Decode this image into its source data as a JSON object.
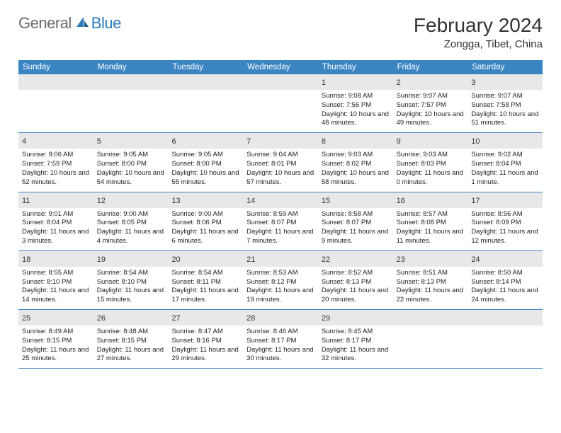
{
  "logo": {
    "part1": "General",
    "part2": "Blue"
  },
  "title": "February 2024",
  "location": "Zongga, Tibet, China",
  "colors": {
    "header_bg": "#3b85c3",
    "header_text": "#ffffff",
    "daynum_bg": "#e8e8e8",
    "border": "#3b85c3",
    "logo_gray": "#6b6b6b",
    "logo_blue": "#2b7bbd"
  },
  "day_names": [
    "Sunday",
    "Monday",
    "Tuesday",
    "Wednesday",
    "Thursday",
    "Friday",
    "Saturday"
  ],
  "weeks": [
    [
      {
        "n": "",
        "empty": true
      },
      {
        "n": "",
        "empty": true
      },
      {
        "n": "",
        "empty": true
      },
      {
        "n": "",
        "empty": true
      },
      {
        "n": "1",
        "sunrise": "Sunrise: 9:08 AM",
        "sunset": "Sunset: 7:56 PM",
        "daylight": "Daylight: 10 hours and 48 minutes."
      },
      {
        "n": "2",
        "sunrise": "Sunrise: 9:07 AM",
        "sunset": "Sunset: 7:57 PM",
        "daylight": "Daylight: 10 hours and 49 minutes."
      },
      {
        "n": "3",
        "sunrise": "Sunrise: 9:07 AM",
        "sunset": "Sunset: 7:58 PM",
        "daylight": "Daylight: 10 hours and 51 minutes."
      }
    ],
    [
      {
        "n": "4",
        "sunrise": "Sunrise: 9:06 AM",
        "sunset": "Sunset: 7:59 PM",
        "daylight": "Daylight: 10 hours and 52 minutes."
      },
      {
        "n": "5",
        "sunrise": "Sunrise: 9:05 AM",
        "sunset": "Sunset: 8:00 PM",
        "daylight": "Daylight: 10 hours and 54 minutes."
      },
      {
        "n": "6",
        "sunrise": "Sunrise: 9:05 AM",
        "sunset": "Sunset: 8:00 PM",
        "daylight": "Daylight: 10 hours and 55 minutes."
      },
      {
        "n": "7",
        "sunrise": "Sunrise: 9:04 AM",
        "sunset": "Sunset: 8:01 PM",
        "daylight": "Daylight: 10 hours and 57 minutes."
      },
      {
        "n": "8",
        "sunrise": "Sunrise: 9:03 AM",
        "sunset": "Sunset: 8:02 PM",
        "daylight": "Daylight: 10 hours and 58 minutes."
      },
      {
        "n": "9",
        "sunrise": "Sunrise: 9:03 AM",
        "sunset": "Sunset: 8:03 PM",
        "daylight": "Daylight: 11 hours and 0 minutes."
      },
      {
        "n": "10",
        "sunrise": "Sunrise: 9:02 AM",
        "sunset": "Sunset: 8:04 PM",
        "daylight": "Daylight: 11 hours and 1 minute."
      }
    ],
    [
      {
        "n": "11",
        "sunrise": "Sunrise: 9:01 AM",
        "sunset": "Sunset: 8:04 PM",
        "daylight": "Daylight: 11 hours and 3 minutes."
      },
      {
        "n": "12",
        "sunrise": "Sunrise: 9:00 AM",
        "sunset": "Sunset: 8:05 PM",
        "daylight": "Daylight: 11 hours and 4 minutes."
      },
      {
        "n": "13",
        "sunrise": "Sunrise: 9:00 AM",
        "sunset": "Sunset: 8:06 PM",
        "daylight": "Daylight: 11 hours and 6 minutes."
      },
      {
        "n": "14",
        "sunrise": "Sunrise: 8:59 AM",
        "sunset": "Sunset: 8:07 PM",
        "daylight": "Daylight: 11 hours and 7 minutes."
      },
      {
        "n": "15",
        "sunrise": "Sunrise: 8:58 AM",
        "sunset": "Sunset: 8:07 PM",
        "daylight": "Daylight: 11 hours and 9 minutes."
      },
      {
        "n": "16",
        "sunrise": "Sunrise: 8:57 AM",
        "sunset": "Sunset: 8:08 PM",
        "daylight": "Daylight: 11 hours and 11 minutes."
      },
      {
        "n": "17",
        "sunrise": "Sunrise: 8:56 AM",
        "sunset": "Sunset: 8:09 PM",
        "daylight": "Daylight: 11 hours and 12 minutes."
      }
    ],
    [
      {
        "n": "18",
        "sunrise": "Sunrise: 8:55 AM",
        "sunset": "Sunset: 8:10 PM",
        "daylight": "Daylight: 11 hours and 14 minutes."
      },
      {
        "n": "19",
        "sunrise": "Sunrise: 8:54 AM",
        "sunset": "Sunset: 8:10 PM",
        "daylight": "Daylight: 11 hours and 15 minutes."
      },
      {
        "n": "20",
        "sunrise": "Sunrise: 8:54 AM",
        "sunset": "Sunset: 8:11 PM",
        "daylight": "Daylight: 11 hours and 17 minutes."
      },
      {
        "n": "21",
        "sunrise": "Sunrise: 8:53 AM",
        "sunset": "Sunset: 8:12 PM",
        "daylight": "Daylight: 11 hours and 19 minutes."
      },
      {
        "n": "22",
        "sunrise": "Sunrise: 8:52 AM",
        "sunset": "Sunset: 8:13 PM",
        "daylight": "Daylight: 11 hours and 20 minutes."
      },
      {
        "n": "23",
        "sunrise": "Sunrise: 8:51 AM",
        "sunset": "Sunset: 8:13 PM",
        "daylight": "Daylight: 11 hours and 22 minutes."
      },
      {
        "n": "24",
        "sunrise": "Sunrise: 8:50 AM",
        "sunset": "Sunset: 8:14 PM",
        "daylight": "Daylight: 11 hours and 24 minutes."
      }
    ],
    [
      {
        "n": "25",
        "sunrise": "Sunrise: 8:49 AM",
        "sunset": "Sunset: 8:15 PM",
        "daylight": "Daylight: 11 hours and 25 minutes."
      },
      {
        "n": "26",
        "sunrise": "Sunrise: 8:48 AM",
        "sunset": "Sunset: 8:15 PM",
        "daylight": "Daylight: 11 hours and 27 minutes."
      },
      {
        "n": "27",
        "sunrise": "Sunrise: 8:47 AM",
        "sunset": "Sunset: 8:16 PM",
        "daylight": "Daylight: 11 hours and 29 minutes."
      },
      {
        "n": "28",
        "sunrise": "Sunrise: 8:46 AM",
        "sunset": "Sunset: 8:17 PM",
        "daylight": "Daylight: 11 hours and 30 minutes."
      },
      {
        "n": "29",
        "sunrise": "Sunrise: 8:45 AM",
        "sunset": "Sunset: 8:17 PM",
        "daylight": "Daylight: 11 hours and 32 minutes."
      },
      {
        "n": "",
        "empty": true
      },
      {
        "n": "",
        "empty": true
      }
    ]
  ]
}
